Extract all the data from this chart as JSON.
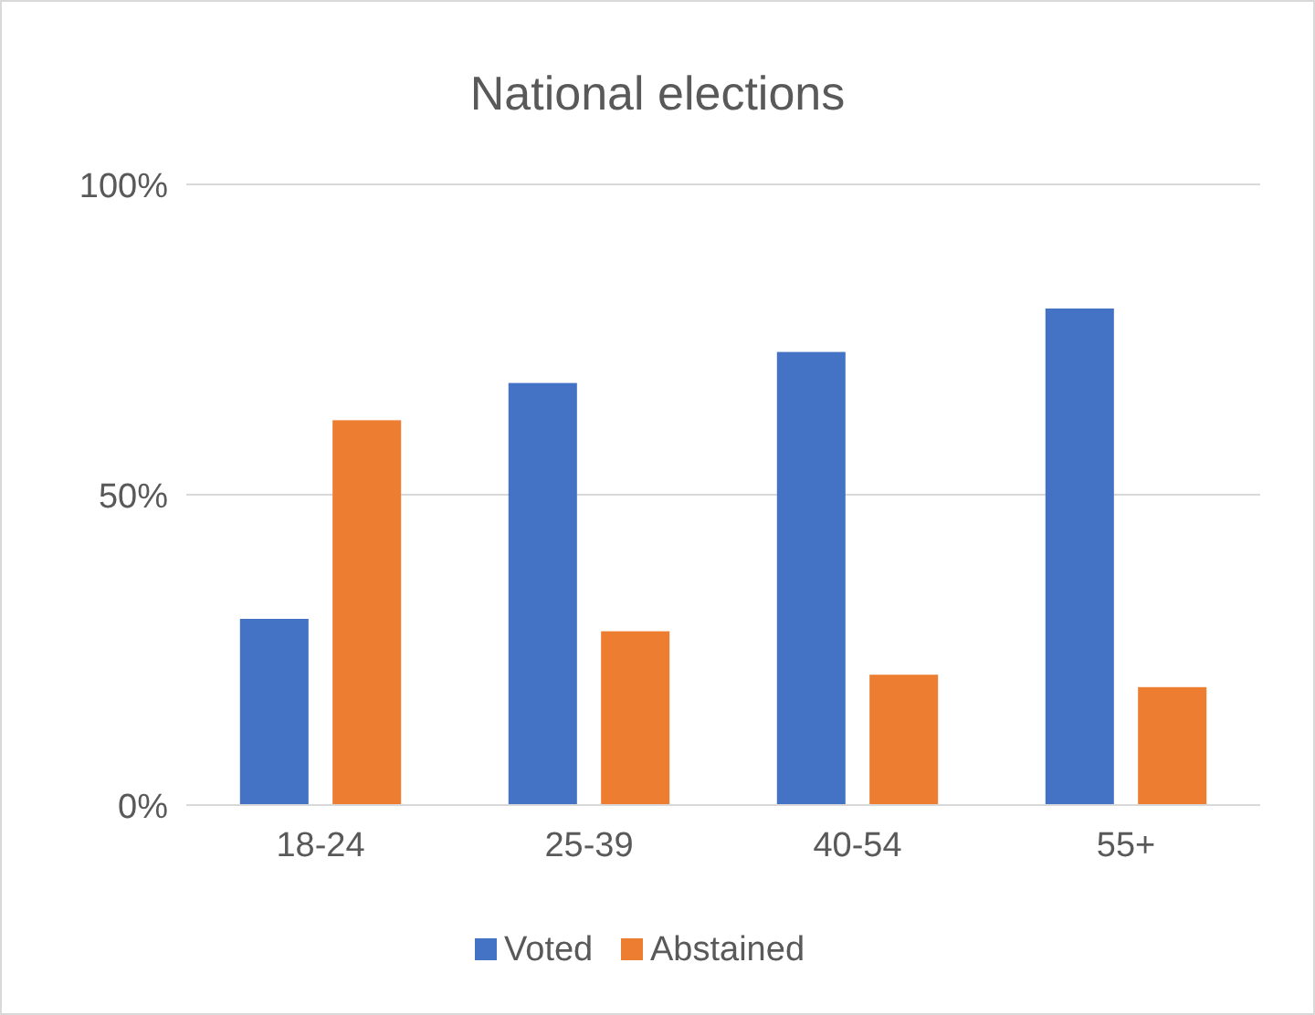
{
  "chart_data": {
    "type": "bar",
    "title": "National elections",
    "categories": [
      "18-24",
      "25-39",
      "40-54",
      "55+"
    ],
    "series": [
      {
        "name": "Voted",
        "color": "#4472c4",
        "values": [
          30,
          68,
          73,
          80
        ]
      },
      {
        "name": "Abstained",
        "color": "#ed7d31",
        "values": [
          62,
          28,
          21,
          19
        ]
      }
    ],
    "ylim": [
      0,
      100
    ],
    "yticks": [
      {
        "value": 0,
        "label": "0%"
      },
      {
        "value": 50,
        "label": "50%"
      },
      {
        "value": 100,
        "label": "100%"
      }
    ],
    "grid": "y",
    "legend": "bottom"
  }
}
